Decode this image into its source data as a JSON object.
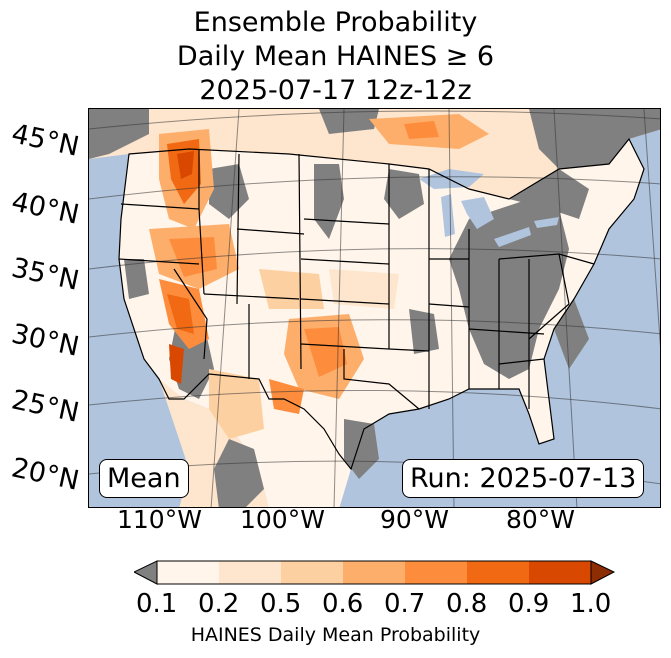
{
  "title": {
    "line1": "Ensemble Probability",
    "line2": "Daily Mean HAINES ≥ 6",
    "line3": "2025-07-17 12z-12z"
  },
  "map": {
    "lat_labels": [
      "45°N",
      "40°N",
      "35°N",
      "30°N",
      "25°N",
      "20°N"
    ],
    "lon_labels": [
      "110°W",
      "100°W",
      "90°W",
      "80°W"
    ],
    "mean_label": "Mean",
    "run_label": "Run: 2025-07-13",
    "colors": {
      "ocean": "#b0c4de",
      "no_data": "#808080",
      "land_low": "#fff5eb"
    }
  },
  "colorbar": {
    "ticks": [
      "0.1",
      "0.2",
      "0.5",
      "0.6",
      "0.7",
      "0.8",
      "0.9",
      "1.0"
    ],
    "label": "HAINES Daily Mean Probability",
    "under_color": "#808080",
    "colors": [
      "#fff5eb",
      "#fee6ce",
      "#fdd0a2",
      "#fdae6b",
      "#fd8d3c",
      "#f16913",
      "#d94801",
      "#8c2d04"
    ]
  }
}
